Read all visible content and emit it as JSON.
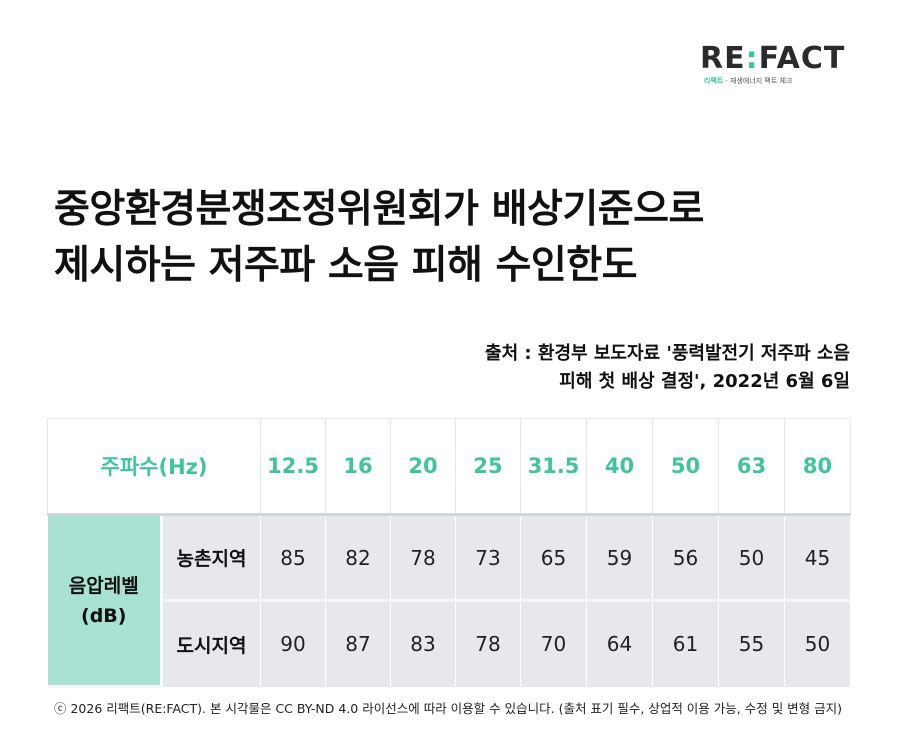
{
  "logo": {
    "brand_prefix": "RE",
    "brand_colon": ":",
    "brand_suffix": "FACT",
    "sub_name": "리팩트",
    "sub_desc": " · 재생에너지 팩트 체크"
  },
  "title": {
    "line1": "중앙환경분쟁조정위원회가 배상기준으로",
    "line2": "제시하는 저주파 소음 피해 수인한도"
  },
  "source": {
    "line1": "출처 : 환경부 보도자료 '풍력발전기 저주파 소음",
    "line2": "피해 첫 배상 결정', 2022년 6월 6일"
  },
  "table": {
    "header_label": "주파수(Hz)",
    "frequencies": [
      "12.5",
      "16",
      "20",
      "25",
      "31.5",
      "40",
      "50",
      "63",
      "80"
    ],
    "group_label_line1": "음압레벨",
    "group_label_line2": "(dB)",
    "rows": [
      {
        "region": "농촌지역",
        "values": [
          "85",
          "82",
          "78",
          "73",
          "65",
          "59",
          "56",
          "50",
          "45"
        ]
      },
      {
        "region": "도시지역",
        "values": [
          "90",
          "87",
          "83",
          "78",
          "70",
          "64",
          "61",
          "55",
          "50"
        ]
      }
    ]
  },
  "footer": {
    "text": "ⓒ 2026 리팩트(RE:FACT). 본 시각물은 CC BY-ND 4.0 라이선스에 따라 이용할 수 있습니다. (출처 표기 필수, 상업적 이용 가능, 수정 및 변형 금지)"
  },
  "colors": {
    "accent": "#41c3a0",
    "group_cell": "#a9e2d3",
    "data_cell": "#e6e8ec"
  }
}
